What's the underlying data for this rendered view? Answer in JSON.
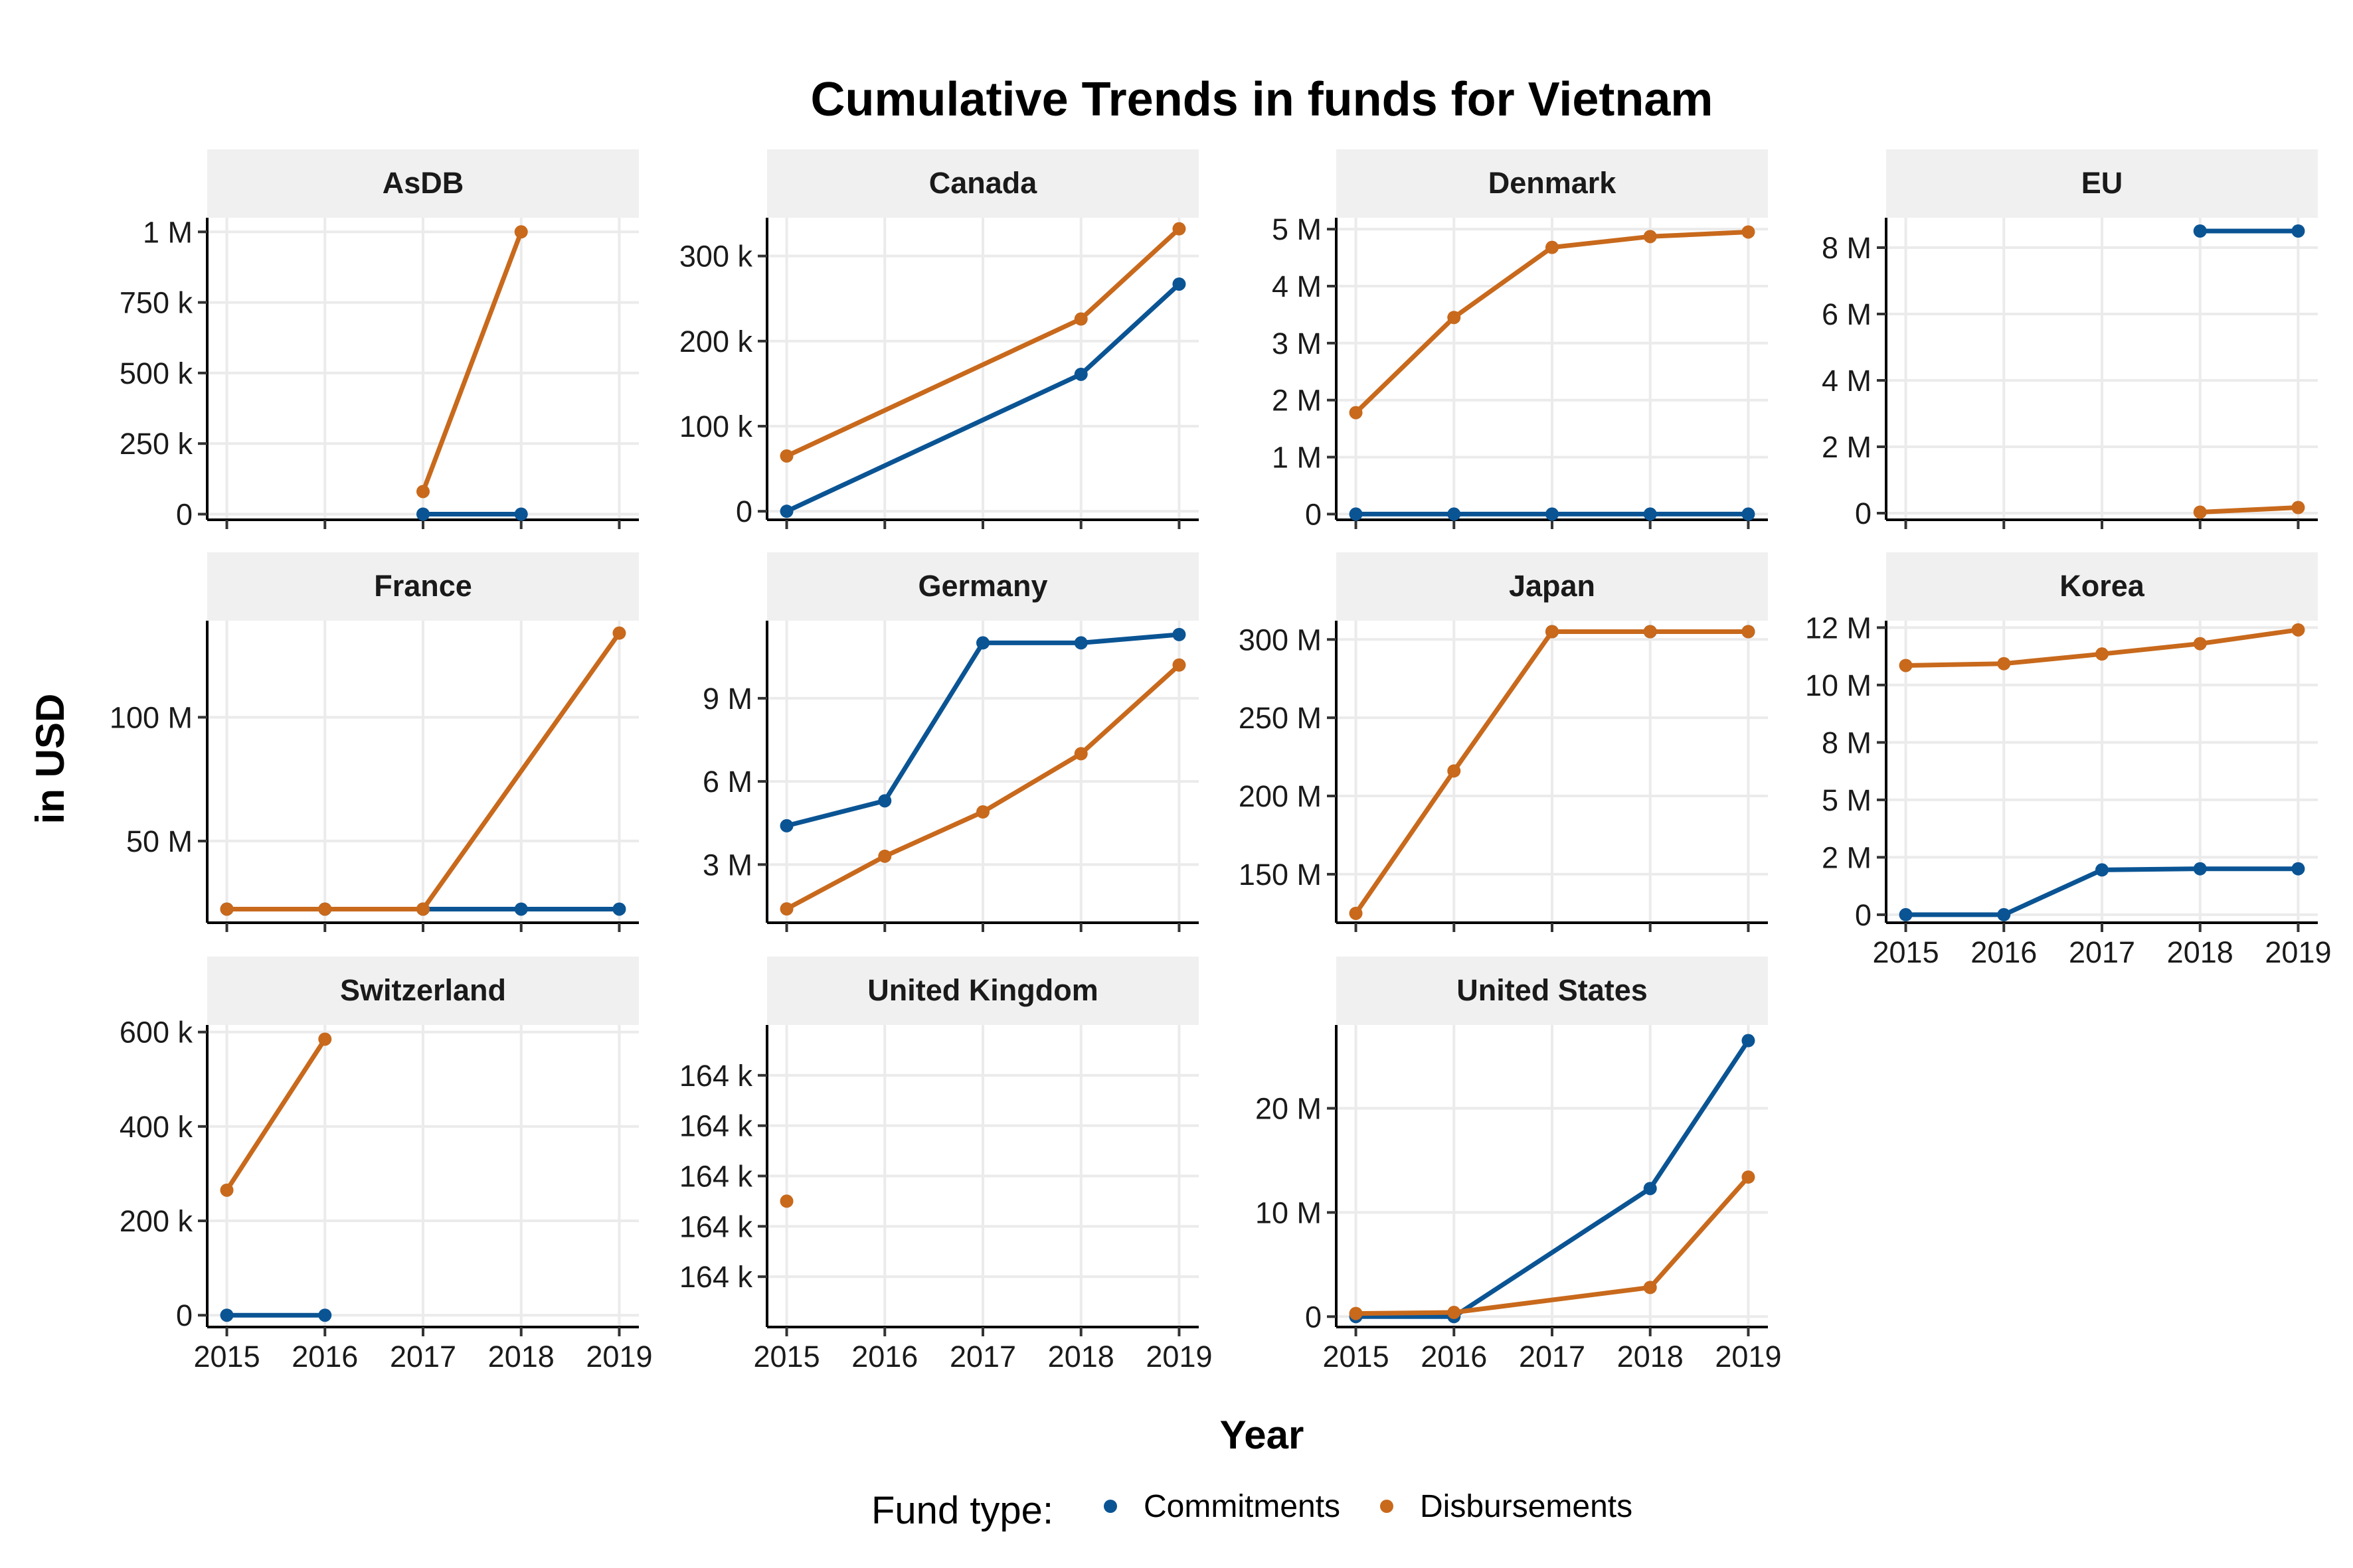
{
  "chart_data": {
    "type": "line",
    "title": "Cumulative Trends in funds for Vietnam",
    "xlabel": "Year",
    "ylabel": "in USD",
    "legend": {
      "title": "Fund type:",
      "position": "bottom",
      "entries": [
        {
          "name": "Commitments",
          "color": "#0a5494"
        },
        {
          "name": "Disbursements",
          "color": "#c8691c"
        }
      ]
    },
    "x_ticks": [
      "2015",
      "2016",
      "2017",
      "2018",
      "2019"
    ],
    "xlim": [
      2014.8,
      2019.2
    ],
    "grid": true,
    "facets": [
      {
        "name": "AsDB",
        "ylim": [
          -20000,
          1050000
        ],
        "y_ticks": [
          {
            "v": 0,
            "label": "0"
          },
          {
            "v": 250000,
            "label": "250 k"
          },
          {
            "v": 500000,
            "label": "500 k"
          },
          {
            "v": 750000,
            "label": "750 k"
          },
          {
            "v": 1000000,
            "label": "1 M"
          }
        ],
        "series": [
          {
            "name": "Commitments",
            "x": [
              2017,
              2018
            ],
            "y": [
              0,
              0
            ]
          },
          {
            "name": "Disbursements",
            "x": [
              2017,
              2018
            ],
            "y": [
              80000,
              1000000
            ]
          }
        ]
      },
      {
        "name": "Canada",
        "ylim": [
          -10000,
          345000
        ],
        "y_ticks": [
          {
            "v": 0,
            "label": "0"
          },
          {
            "v": 100000,
            "label": "100 k"
          },
          {
            "v": 200000,
            "label": "200 k"
          },
          {
            "v": 300000,
            "label": "300 k"
          }
        ],
        "series": [
          {
            "name": "Commitments",
            "x": [
              2015,
              2018,
              2019
            ],
            "y": [
              0,
              161000,
              267000
            ]
          },
          {
            "name": "Disbursements",
            "x": [
              2015,
              2018,
              2019
            ],
            "y": [
              65000,
              226000,
              332000
            ]
          }
        ]
      },
      {
        "name": "Denmark",
        "ylim": [
          -100000,
          5200000
        ],
        "y_ticks": [
          {
            "v": 0,
            "label": "0"
          },
          {
            "v": 1000000,
            "label": "1 M"
          },
          {
            "v": 2000000,
            "label": "2 M"
          },
          {
            "v": 3000000,
            "label": "3 M"
          },
          {
            "v": 4000000,
            "label": "4 M"
          },
          {
            "v": 5000000,
            "label": "5 M"
          }
        ],
        "series": [
          {
            "name": "Commitments",
            "x": [
              2015,
              2016,
              2017,
              2018,
              2019
            ],
            "y": [
              0,
              0,
              0,
              0,
              0
            ]
          },
          {
            "name": "Disbursements",
            "x": [
              2015,
              2016,
              2017,
              2018,
              2019
            ],
            "y": [
              1780000,
              3450000,
              4680000,
              4870000,
              4950000
            ]
          }
        ]
      },
      {
        "name": "EU",
        "ylim": [
          -200000,
          8900000
        ],
        "y_ticks": [
          {
            "v": 0,
            "label": "0"
          },
          {
            "v": 2000000,
            "label": "2 M"
          },
          {
            "v": 4000000,
            "label": "4 M"
          },
          {
            "v": 6000000,
            "label": "6 M"
          },
          {
            "v": 8000000,
            "label": "8 M"
          }
        ],
        "series": [
          {
            "name": "Commitments",
            "x": [
              2018,
              2019
            ],
            "y": [
              8500000,
              8500000
            ]
          },
          {
            "name": "Disbursements",
            "x": [
              2018,
              2019
            ],
            "y": [
              30000,
              170000
            ]
          }
        ]
      },
      {
        "name": "France",
        "ylim": [
          17000000,
          139000000
        ],
        "y_ticks": [
          {
            "v": 50000000,
            "label": "50 M"
          },
          {
            "v": 100000000,
            "label": "100 M"
          }
        ],
        "series": [
          {
            "name": "Commitments",
            "x": [
              2015,
              2016,
              2017,
              2018,
              2019
            ],
            "y": [
              22500000,
              22500000,
              22500000,
              22500000,
              22500000
            ]
          },
          {
            "name": "Disbursements",
            "x": [
              2015,
              2016,
              2017,
              2019
            ],
            "y": [
              22500000,
              22500000,
              22500000,
              134000000
            ]
          }
        ]
      },
      {
        "name": "Germany",
        "ylim": [
          900000,
          11800000
        ],
        "y_ticks": [
          {
            "v": 3000000,
            "label": "3 M"
          },
          {
            "v": 6000000,
            "label": "6 M"
          },
          {
            "v": 9000000,
            "label": "9 M"
          }
        ],
        "series": [
          {
            "name": "Commitments",
            "x": [
              2015,
              2016,
              2017,
              2018,
              2019
            ],
            "y": [
              4400000,
              5300000,
              11000000,
              11000000,
              11300000
            ]
          },
          {
            "name": "Disbursements",
            "x": [
              2015,
              2016,
              2017,
              2018,
              2019
            ],
            "y": [
              1400000,
              3300000,
              4900000,
              7000000,
              10200000
            ]
          }
        ]
      },
      {
        "name": "Japan",
        "ylim": [
          119000000,
          312000000
        ],
        "y_ticks": [
          {
            "v": 150000000,
            "label": "150 M"
          },
          {
            "v": 200000000,
            "label": "200 M"
          },
          {
            "v": 250000000,
            "label": "250 M"
          },
          {
            "v": 300000000,
            "label": "300 M"
          }
        ],
        "series": [
          {
            "name": "Commitments",
            "x": [
              2017,
              2018,
              2019
            ],
            "y": [
              305000000,
              305000000,
              305000000
            ]
          },
          {
            "name": "Disbursements",
            "x": [
              2015,
              2016,
              2017,
              2018,
              2019
            ],
            "y": [
              125000000,
              216000000,
              305000000,
              305000000,
              305000000
            ]
          }
        ]
      },
      {
        "name": "Korea",
        "ylim": [
          -350000,
          12800000
        ],
        "y_ticks": [
          {
            "v": 0,
            "label": "0"
          },
          {
            "v": 2500000,
            "label": "2 M"
          },
          {
            "v": 5000000,
            "label": "5 M"
          },
          {
            "v": 7500000,
            "label": "8 M"
          },
          {
            "v": 10000000,
            "label": "10 M"
          },
          {
            "v": 12500000,
            "label": "12 M"
          }
        ],
        "series": [
          {
            "name": "Commitments",
            "x": [
              2015,
              2016,
              2017,
              2018,
              2019
            ],
            "y": [
              0,
              0,
              1950000,
              2000000,
              2000000
            ]
          },
          {
            "name": "Disbursements",
            "x": [
              2015,
              2016,
              2017,
              2018,
              2019
            ],
            "y": [
              10850000,
              10930000,
              11350000,
              11800000,
              12400000
            ]
          }
        ]
      },
      {
        "name": "Switzerland",
        "ylim": [
          -25000,
          615000
        ],
        "y_ticks": [
          {
            "v": 0,
            "label": "0"
          },
          {
            "v": 200000,
            "label": "200 k"
          },
          {
            "v": 400000,
            "label": "400 k"
          },
          {
            "v": 600000,
            "label": "600 k"
          }
        ],
        "series": [
          {
            "name": "Commitments",
            "x": [
              2015,
              2016
            ],
            "y": [
              0,
              0
            ]
          },
          {
            "name": "Disbursements",
            "x": [
              2015,
              2016
            ],
            "y": [
              265000,
              585000
            ]
          }
        ]
      },
      {
        "name": "United Kingdom",
        "ylim": [
          0,
          6
        ],
        "y_ticks": [
          {
            "v": 1,
            "label": "164 k"
          },
          {
            "v": 2,
            "label": "164 k"
          },
          {
            "v": 3,
            "label": "164 k"
          },
          {
            "v": 4,
            "label": "164 k"
          },
          {
            "v": 5,
            "label": "164 k"
          }
        ],
        "series": [
          {
            "name": "Disbursements",
            "x": [
              2015
            ],
            "y": [
              2.5
            ]
          }
        ]
      },
      {
        "name": "United States",
        "ylim": [
          -1000000,
          28000000
        ],
        "y_ticks": [
          {
            "v": 0,
            "label": "0"
          },
          {
            "v": 10000000,
            "label": "10 M"
          },
          {
            "v": 20000000,
            "label": "20 M"
          }
        ],
        "series": [
          {
            "name": "Commitments",
            "x": [
              2015,
              2016,
              2018,
              2019
            ],
            "y": [
              0,
              0,
              12300000,
              26500000
            ]
          },
          {
            "name": "Disbursements",
            "x": [
              2015,
              2016,
              2018,
              2019
            ],
            "y": [
              300000,
              400000,
              2800000,
              13400000
            ]
          }
        ]
      }
    ]
  }
}
